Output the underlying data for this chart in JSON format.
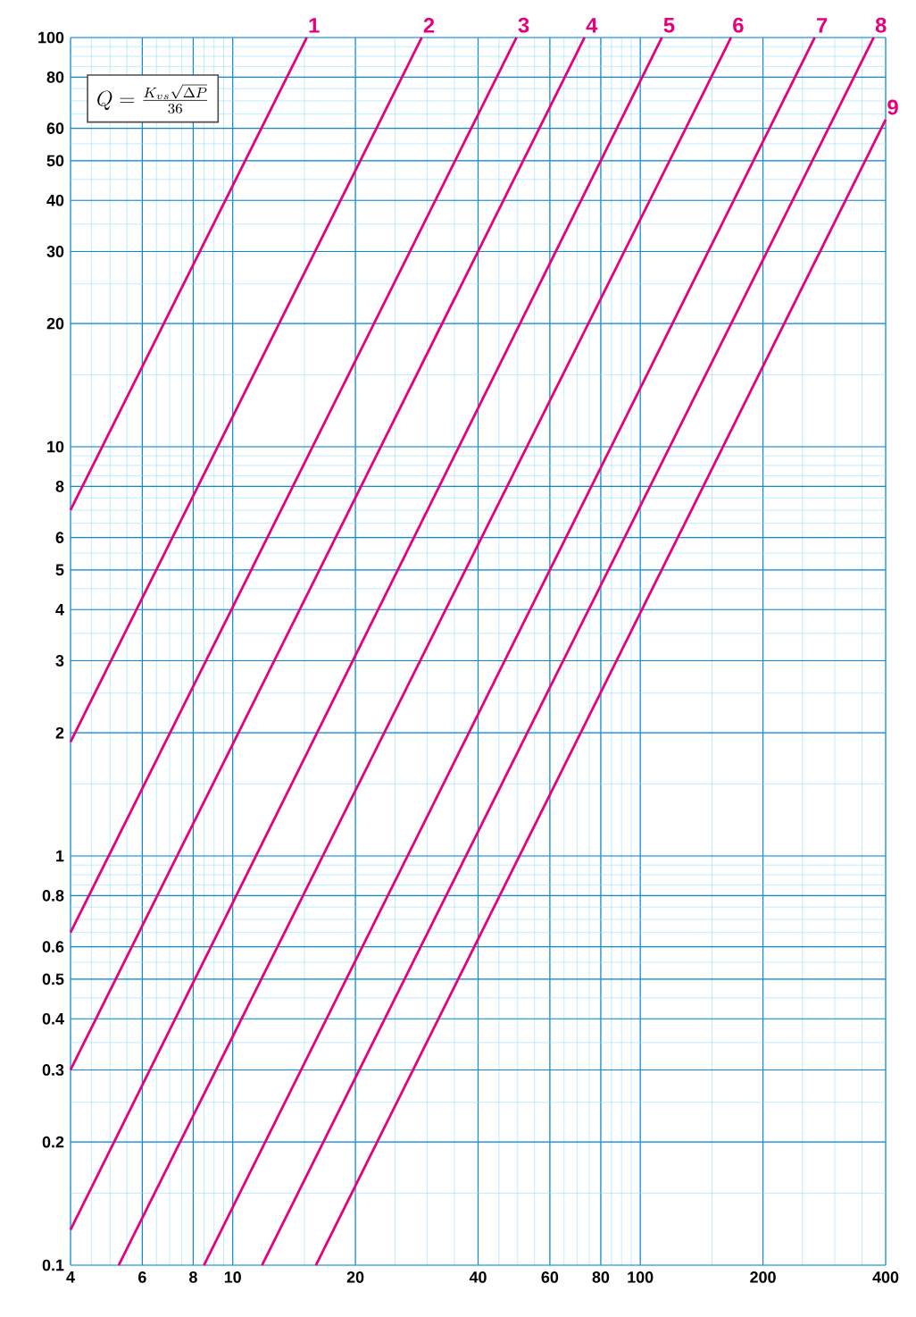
{
  "chart_data": {
    "type": "line",
    "annotations": [
      "Q = \\frac{K_{vs}\\sqrt{\\Delta P}}{36}"
    ],
    "series": [
      {
        "name": "1",
        "color": "#e5007d",
        "x": [
          4,
          15.2
        ],
        "values": [
          7,
          100
        ]
      },
      {
        "name": "2",
        "color": "#e5007d",
        "x": [
          4,
          29.1
        ],
        "values": [
          1.9,
          100
        ]
      },
      {
        "name": "3",
        "color": "#e5007d",
        "x": [
          4,
          49.7
        ],
        "values": [
          0.65,
          100
        ]
      },
      {
        "name": "4",
        "color": "#e5007d",
        "x": [
          4,
          73
        ],
        "values": [
          0.3,
          100
        ]
      },
      {
        "name": "5",
        "color": "#e5007d",
        "x": [
          4,
          113
        ],
        "values": [
          0.122,
          100
        ]
      },
      {
        "name": "6",
        "color": "#e5007d",
        "x": [
          5.25,
          167
        ],
        "values": [
          0.1,
          100
        ]
      },
      {
        "name": "7",
        "color": "#e5007d",
        "x": [
          8.5,
          268
        ],
        "values": [
          0.1,
          100
        ]
      },
      {
        "name": "8",
        "color": "#e5007d",
        "x": [
          11.8,
          374
        ],
        "values": [
          0.1,
          100
        ]
      },
      {
        "name": "9",
        "color": "#e5007d",
        "x": [
          16,
          400
        ],
        "values": [
          0.1,
          63
        ]
      }
    ],
    "log": "xy",
    "grid": true,
    "marker": "none",
    "line_style": "solid",
    "xlim": [
      4,
      400
    ],
    "xticks": [
      4,
      6,
      8,
      10,
      20,
      40,
      60,
      80,
      100,
      200,
      400
    ],
    "ylim": [
      0.1,
      100
    ],
    "yticks": [
      0.1,
      0.2,
      0.3,
      0.4,
      0.5,
      0.6,
      0.8,
      1,
      2,
      3,
      4,
      5,
      6,
      8,
      10,
      20,
      30,
      40,
      50,
      60,
      80,
      100
    ]
  }
}
